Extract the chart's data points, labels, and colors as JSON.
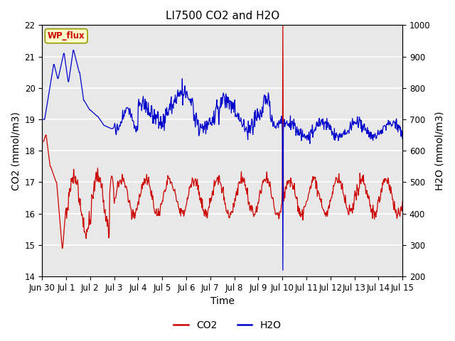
{
  "title": "LI7500 CO2 and H2O",
  "xlabel": "Time",
  "ylabel_left": "CO2 (mmol/m3)",
  "ylabel_right": "H2O (mmol/m3)",
  "ylim_left": [
    14.0,
    22.0
  ],
  "ylim_right": [
    200,
    1000
  ],
  "yticks_left": [
    14.0,
    15.0,
    16.0,
    17.0,
    18.0,
    19.0,
    20.0,
    21.0,
    22.0
  ],
  "yticks_right": [
    200,
    300,
    400,
    500,
    600,
    700,
    800,
    900,
    1000
  ],
  "xtick_labels": [
    "Jun 30",
    "Jul 1",
    "Jul 2",
    "Jul 3",
    "Jul 4",
    "Jul 5",
    "Jul 6",
    "Jul 7",
    "Jul 8",
    "Jul 9",
    "Jul 10",
    "Jul 11",
    "Jul 12",
    "Jul 13",
    "Jul 14",
    "Jul 15"
  ],
  "annotation_text": "WP_flux",
  "annotation_color": "#cc0000",
  "annotation_bg": "#ffffcc",
  "plot_bg_color": "#e8e8e8",
  "fig_bg_color": "#ffffff",
  "co2_color": "#cc0000",
  "h2o_color": "#0000cc",
  "grid_color": "#ffffff",
  "title_fontsize": 11,
  "axis_fontsize": 10,
  "tick_fontsize": 8.5,
  "legend_fontsize": 10
}
